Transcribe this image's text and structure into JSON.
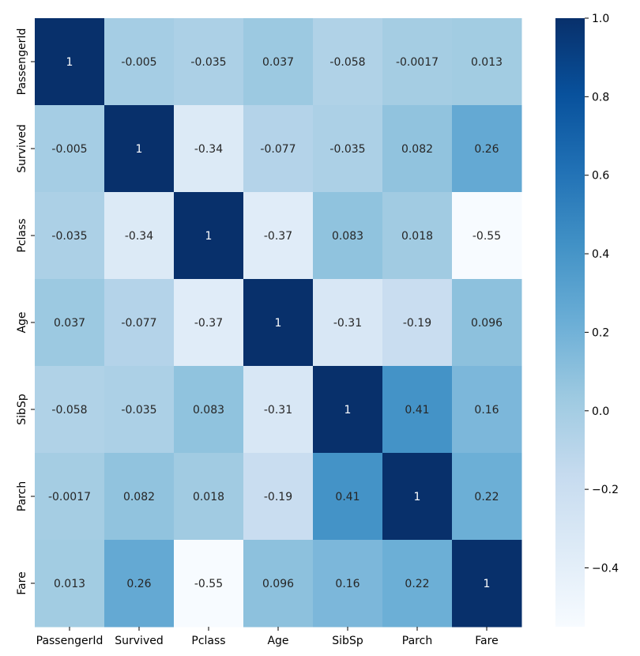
{
  "chart_data": {
    "type": "heatmap",
    "title": "",
    "xlabel": "",
    "ylabel": "",
    "x_labels": [
      "PassengerId",
      "Survived",
      "Pclass",
      "Age",
      "SibSp",
      "Parch",
      "Fare"
    ],
    "y_labels": [
      "PassengerId",
      "Survived",
      "Pclass",
      "Age",
      "SibSp",
      "Parch",
      "Fare"
    ],
    "values": [
      [
        1,
        -0.005,
        -0.035,
        0.037,
        -0.058,
        -0.0017,
        0.013
      ],
      [
        -0.005,
        1,
        -0.34,
        -0.077,
        -0.035,
        0.082,
        0.26
      ],
      [
        -0.035,
        -0.34,
        1,
        -0.37,
        0.083,
        0.018,
        -0.55
      ],
      [
        0.037,
        -0.077,
        -0.37,
        1,
        -0.31,
        -0.19,
        0.096
      ],
      [
        -0.058,
        -0.035,
        0.083,
        -0.31,
        1,
        0.41,
        0.16
      ],
      [
        -0.0017,
        0.082,
        0.018,
        -0.19,
        0.41,
        1,
        0.22
      ],
      [
        0.013,
        0.26,
        -0.55,
        0.096,
        0.16,
        0.22,
        1
      ]
    ],
    "annotations": [
      [
        "1",
        "-0.005",
        "-0.035",
        "0.037",
        "-0.058",
        "-0.0017",
        "0.013"
      ],
      [
        "-0.005",
        "1",
        "-0.34",
        "-0.077",
        "-0.035",
        "0.082",
        "0.26"
      ],
      [
        "-0.035",
        "-0.34",
        "1",
        "-0.37",
        "0.083",
        "0.018",
        "-0.55"
      ],
      [
        "0.037",
        "-0.077",
        "-0.37",
        "1",
        "-0.31",
        "-0.19",
        "0.096"
      ],
      [
        "-0.058",
        "-0.035",
        "0.083",
        "-0.31",
        "1",
        "0.41",
        "0.16"
      ],
      [
        "-0.0017",
        "0.082",
        "0.018",
        "-0.19",
        "0.41",
        "1",
        "0.22"
      ],
      [
        "0.013",
        "0.26",
        "-0.55",
        "0.096",
        "0.16",
        "0.22",
        "1"
      ]
    ],
    "colormap": "Blues",
    "colormap_stops": [
      "#f7fbff",
      "#deebf7",
      "#c6dbef",
      "#9ecae1",
      "#6baed6",
      "#4292c6",
      "#2171b5",
      "#08519c",
      "#08306b"
    ],
    "color_range": [
      -0.55,
      1
    ],
    "colorbar": {
      "ticks": [
        1.0,
        0.8,
        0.6,
        0.4,
        0.2,
        0.0,
        -0.2,
        -0.4
      ],
      "tick_labels": [
        "1.0",
        "0.8",
        "0.6",
        "0.4",
        "0.2",
        "0.0",
        "−0.2",
        "−0.4"
      ]
    },
    "grid": false,
    "legend": "colorbar-right"
  }
}
